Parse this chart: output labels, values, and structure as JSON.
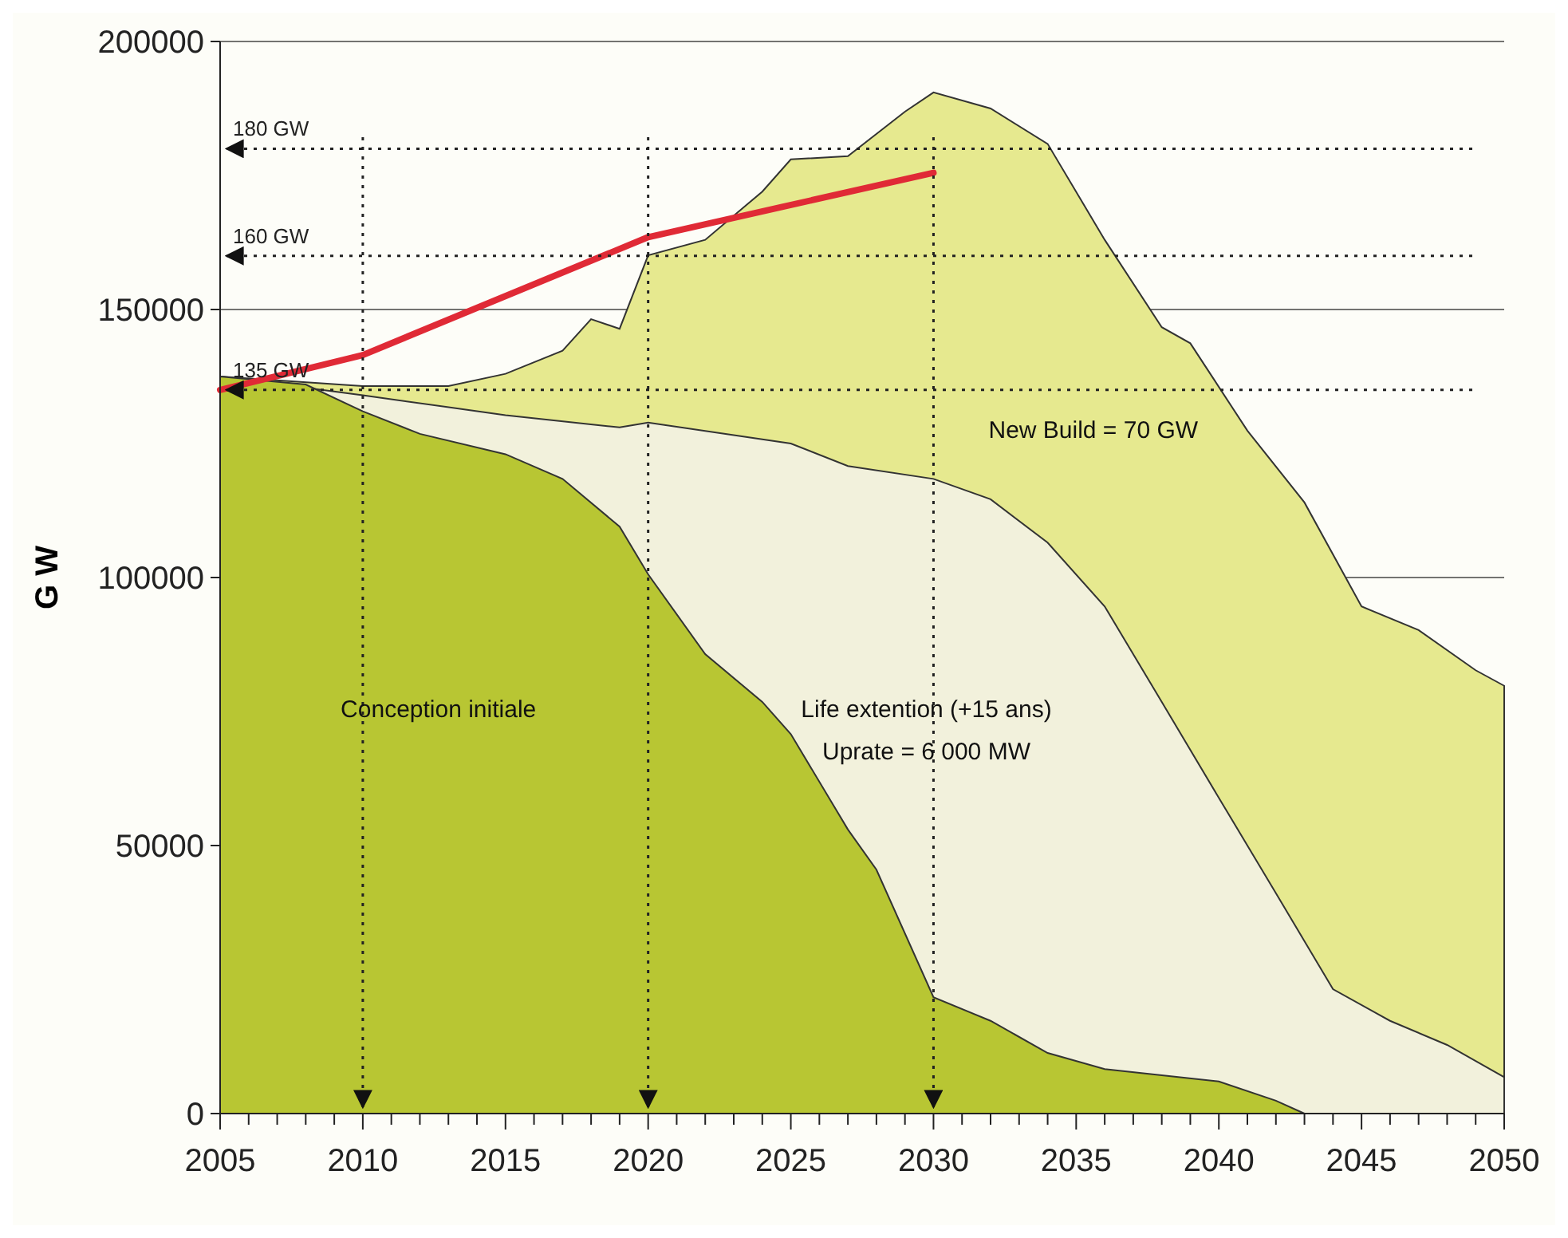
{
  "chart_data": {
    "type": "area",
    "ylabel": "G W",
    "xlim": [
      2005,
      2050
    ],
    "xticks": [
      2005,
      {
        "value": 2006,
        "label": null
      },
      {
        "value": 2007,
        "label": null
      },
      {
        "value": 2008,
        "label": null
      },
      {
        "value": 2009,
        "label": null
      },
      2010,
      {
        "value": 2011,
        "label": null
      },
      {
        "value": 2012,
        "label": null
      },
      {
        "value": 2013,
        "label": null
      },
      {
        "value": 2014,
        "label": null
      },
      2015,
      {
        "value": 2016,
        "label": null
      },
      {
        "value": 2017,
        "label": null
      },
      {
        "value": 2018,
        "label": null
      },
      {
        "value": 2019,
        "label": null
      },
      2020,
      {
        "value": 2021,
        "label": null
      },
      {
        "value": 2022,
        "label": null
      },
      {
        "value": 2023,
        "label": null
      },
      {
        "value": 2024,
        "label": null
      },
      2025,
      {
        "value": 2026,
        "label": null
      },
      {
        "value": 2027,
        "label": null
      },
      {
        "value": 2028,
        "label": null
      },
      {
        "value": 2029,
        "label": null
      },
      2030,
      {
        "value": 2031,
        "label": null
      },
      {
        "value": 2032,
        "label": null
      },
      {
        "value": 2033,
        "label": null
      },
      {
        "value": 2034,
        "label": null
      },
      2035,
      {
        "value": 2036,
        "label": null
      },
      {
        "value": 2037,
        "label": null
      },
      {
        "value": 2038,
        "label": null
      },
      {
        "value": 2039,
        "label": null
      },
      2040,
      {
        "value": 2041,
        "label": null
      },
      {
        "value": 2042,
        "label": null
      },
      {
        "value": 2043,
        "label": null
      },
      {
        "value": 2044,
        "label": null
      },
      2045,
      {
        "value": 2046,
        "label": null
      },
      {
        "value": 2047,
        "label": null
      },
      {
        "value": 2048,
        "label": null
      },
      {
        "value": 2049,
        "label": null
      },
      2050
    ],
    "ylim": [
      0,
      200000
    ],
    "yticks": [
      0,
      50000,
      100000,
      150000,
      200000
    ],
    "grid": "y",
    "series": [
      {
        "color": "#e6e98f",
        "x": [
          2005,
          2010,
          2013,
          2015,
          2017,
          2018,
          2019,
          2020,
          2022,
          2024,
          2025,
          2027,
          2029,
          2030,
          2032,
          2034,
          2036,
          2038,
          2039,
          2041,
          2043,
          2045,
          2047,
          2049,
          2050
        ],
        "values": [
          137500,
          135700,
          135700,
          138000,
          142300,
          148200,
          146400,
          160100,
          163000,
          172000,
          178000,
          178600,
          186900,
          190500,
          187500,
          180900,
          163000,
          146700,
          143700,
          127400,
          114000,
          94600,
          90200,
          82700,
          79800
        ]
      },
      {
        "color": "#f2f1dc",
        "x": [
          2005,
          2010,
          2015,
          2019,
          2020,
          2025,
          2027,
          2030,
          2032,
          2034,
          2036,
          2038,
          2040,
          2042,
          2044,
          2046,
          2048,
          2050
        ],
        "values": [
          137500,
          134000,
          130300,
          128000,
          128900,
          125000,
          120800,
          118400,
          114600,
          106500,
          94600,
          76800,
          58900,
          41100,
          23200,
          17300,
          12800,
          6800
        ]
      },
      {
        "color": "#b8c633",
        "x": [
          2005,
          2008,
          2010,
          2012,
          2015,
          2017,
          2019,
          2020,
          2022,
          2024,
          2025,
          2027,
          2028,
          2030,
          2032,
          2034,
          2036,
          2040,
          2042,
          2043
        ],
        "values": [
          137500,
          136000,
          131000,
          126800,
          123000,
          118400,
          109500,
          100600,
          85700,
          76800,
          70800,
          53000,
          45500,
          21700,
          17300,
          11300,
          8300,
          6000,
          2400,
          0
        ]
      },
      {
        "type": "line",
        "color": "#e02a36",
        "x": [
          2005,
          2010,
          2020,
          2030
        ],
        "values": [
          135000,
          141500,
          163500,
          175500
        ]
      }
    ],
    "ref_lines": [
      {
        "axis": "y",
        "value": 180000,
        "label": "180 GW",
        "line_style": "dotted",
        "color": "#222222"
      },
      {
        "axis": "y",
        "value": 160000,
        "label": "160 GW",
        "line_style": "dotted",
        "color": "#222222"
      },
      {
        "axis": "y",
        "value": 135000,
        "label": "135 GW",
        "line_style": "dotted",
        "color": "#222222"
      },
      {
        "axis": "x",
        "value": 2010,
        "line_style": "dotted",
        "color": "#222222"
      },
      {
        "axis": "x",
        "value": 2020,
        "line_style": "dotted",
        "color": "#222222"
      },
      {
        "axis": "x",
        "value": 2030,
        "line_style": "dotted",
        "color": "#222222"
      }
    ],
    "annotations": [
      "New Build = 70 GW",
      "Life extention (+15 ans)",
      "Uprate = 6 000 MW",
      "Conception initiale"
    ]
  }
}
